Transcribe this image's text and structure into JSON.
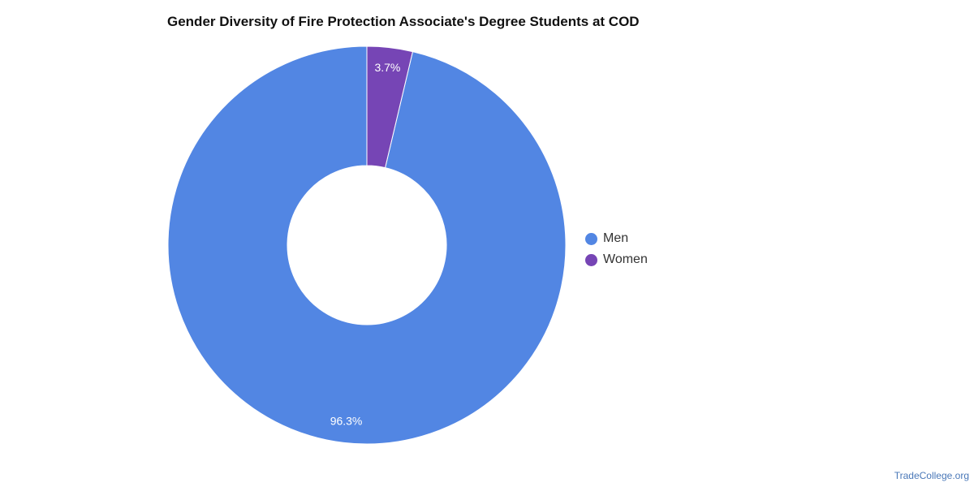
{
  "chart_data": {
    "type": "pie",
    "title": "Gender Diversity of Fire Protection Associate's Degree Students at COD",
    "categories": [
      "Men",
      "Women"
    ],
    "values": [
      96.3,
      3.7
    ],
    "value_labels": [
      "96.3%",
      "3.7%"
    ],
    "colors": [
      "#5286e3",
      "#7645b5"
    ],
    "donut": true,
    "legend_position": "right"
  },
  "source": "TradeCollege.org"
}
